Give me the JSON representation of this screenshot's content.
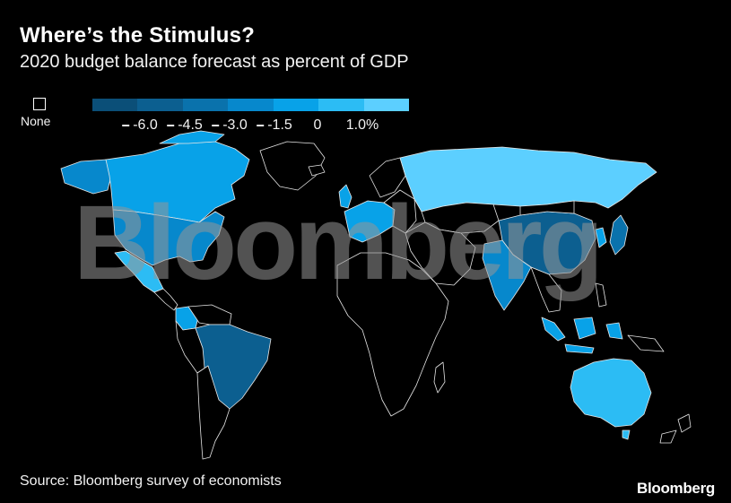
{
  "title": "Where’s the Stimulus?",
  "subtitle": "2020 budget balance forecast as percent of GDP",
  "legend": {
    "none_label": "None",
    "colors": [
      "#0b4f78",
      "#0c5f90",
      "#0a72ac",
      "#0788cc",
      "#08a2e8",
      "#2cbcf4",
      "#5ccfff"
    ],
    "ticks": [
      "-6.0",
      "-4.5",
      "-3.0",
      "-1.5",
      "0",
      "1.0%"
    ]
  },
  "watermark": "Bloomberg",
  "source": "Source: Bloomberg survey of economists",
  "brand": "Bloomberg",
  "map_data": {
    "colors": {
      "canada": "#08a2e8",
      "united_states": "#0788cc",
      "mexico": "#2cbcf4",
      "brazil": "#0c5f90",
      "colombia": "#08a2e8",
      "europe": "#08a2e8",
      "russia": "#5ccfff",
      "china": "#0c5f90",
      "india": "#0788cc",
      "japan": "#0a72ac",
      "south_korea": "#08a2e8",
      "indonesia": "#08a2e8",
      "australia": "#2cbcf4",
      "no_data": "#000000",
      "border": "#e6e6e6"
    }
  }
}
